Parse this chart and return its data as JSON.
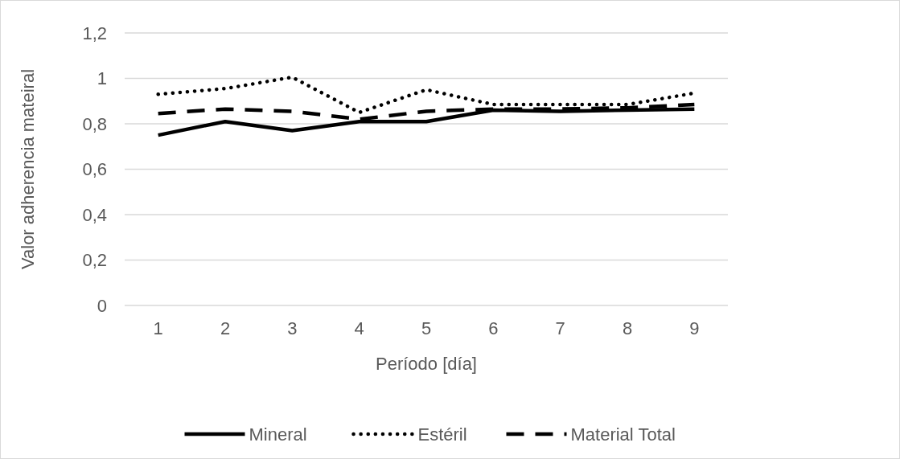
{
  "chart_data": {
    "type": "line",
    "xlabel": "Período [día]",
    "ylabel": "Valor adherencia mateiral",
    "categories": [
      "1",
      "2",
      "3",
      "4",
      "5",
      "6",
      "7",
      "8",
      "9"
    ],
    "series": [
      {
        "name": "Mineral",
        "color": "#000000",
        "line_style": "solid",
        "values": [
          0.75,
          0.81,
          0.77,
          0.81,
          0.81,
          0.86,
          0.855,
          0.86,
          0.865
        ]
      },
      {
        "name": "Estéril",
        "color": "#000000",
        "line_style": "dotted",
        "values": [
          0.93,
          0.955,
          1.005,
          0.85,
          0.95,
          0.885,
          0.885,
          0.885,
          0.935
        ]
      },
      {
        "name": "Material Total",
        "color": "#000000",
        "line_style": "dashed",
        "values": [
          0.845,
          0.865,
          0.855,
          0.82,
          0.855,
          0.865,
          0.865,
          0.87,
          0.885
        ]
      }
    ],
    "ylim": [
      0,
      1.2
    ],
    "yticks": [
      {
        "value": 0,
        "label": "0"
      },
      {
        "value": 0.2,
        "label": "0,2"
      },
      {
        "value": 0.4,
        "label": "0,4"
      },
      {
        "value": 0.6,
        "label": "0,6"
      },
      {
        "value": 0.8,
        "label": "0,8"
      },
      {
        "value": 1,
        "label": "1"
      },
      {
        "value": 1.2,
        "label": "1,2"
      }
    ],
    "grid": "y",
    "legend": "bottom"
  }
}
